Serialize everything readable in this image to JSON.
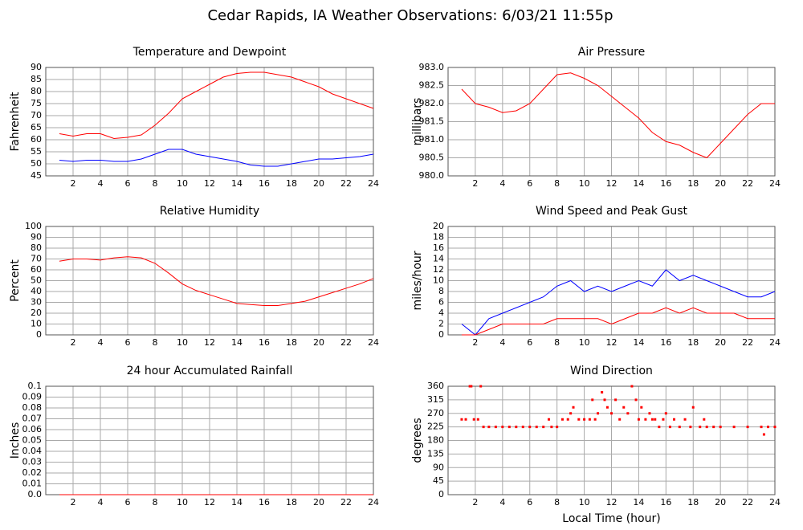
{
  "title": "Cedar Rapids, IA Weather Observations: 6/03/21 11:55p",
  "chart_data": [
    {
      "type": "line",
      "title": "Temperature and Dewpoint",
      "ylabel": "Fahrenheit",
      "x": [
        1,
        2,
        3,
        4,
        5,
        6,
        7,
        8,
        9,
        10,
        11,
        12,
        13,
        14,
        15,
        16,
        17,
        18,
        19,
        20,
        21,
        22,
        23,
        24
      ],
      "series": [
        {
          "color": "#ff0000",
          "values": [
            62.5,
            61.5,
            62.5,
            62.5,
            60.5,
            61,
            62,
            66,
            71,
            77,
            80,
            83,
            86,
            87.5,
            88,
            88,
            87,
            86,
            84,
            82,
            79,
            77,
            75,
            73
          ]
        },
        {
          "color": "#0000ff",
          "values": [
            51.5,
            51,
            51.5,
            51.5,
            51,
            51,
            52,
            54,
            56,
            56,
            54,
            53,
            52,
            51,
            49.5,
            49,
            49,
            50,
            51,
            52,
            52,
            52.5,
            53,
            54
          ]
        }
      ],
      "xlim": [
        0,
        24
      ],
      "xticks": [
        2,
        4,
        6,
        8,
        10,
        12,
        14,
        16,
        18,
        20,
        22,
        24
      ],
      "ylim": [
        45,
        90
      ],
      "yticks": [
        45,
        50,
        55,
        60,
        65,
        70,
        75,
        80,
        85,
        90
      ],
      "grid": true
    },
    {
      "type": "line",
      "title": "Air Pressure",
      "ylabel": "millibars",
      "x": [
        1,
        2,
        3,
        4,
        5,
        6,
        7,
        8,
        9,
        10,
        11,
        12,
        13,
        14,
        15,
        16,
        17,
        18,
        19,
        20,
        21,
        22,
        23,
        24
      ],
      "series": [
        {
          "color": "#ff0000",
          "values": [
            982.4,
            982.0,
            981.9,
            981.75,
            981.8,
            982.0,
            982.4,
            982.8,
            982.85,
            982.7,
            982.5,
            982.2,
            981.9,
            981.6,
            981.2,
            980.95,
            980.85,
            980.65,
            980.5,
            980.9,
            981.3,
            981.7,
            982.0,
            982.0
          ]
        }
      ],
      "xlim": [
        0,
        24
      ],
      "xticks": [
        2,
        4,
        6,
        8,
        10,
        12,
        14,
        16,
        18,
        20,
        22,
        24
      ],
      "ylim": [
        980,
        983
      ],
      "yticks": [
        {
          "value": 980,
          "label": "980.0"
        },
        980.5,
        {
          "value": 981,
          "label": "981.0"
        },
        981.5,
        {
          "value": 982,
          "label": "982.0"
        },
        982.5,
        {
          "value": 983,
          "label": "983.0"
        }
      ],
      "grid": true
    },
    {
      "type": "line",
      "title": "Relative Humidity",
      "ylabel": "Percent",
      "x": [
        1,
        2,
        3,
        4,
        5,
        6,
        7,
        8,
        9,
        10,
        11,
        12,
        13,
        14,
        15,
        16,
        17,
        18,
        19,
        20,
        21,
        22,
        23,
        24
      ],
      "series": [
        {
          "color": "#ff0000",
          "values": [
            68,
            70,
            70,
            69,
            71,
            72,
            71,
            66,
            57,
            47,
            41,
            37,
            33,
            29,
            28,
            27,
            27,
            29,
            31,
            35,
            39,
            43,
            47,
            52
          ]
        }
      ],
      "xlim": [
        0,
        24
      ],
      "xticks": [
        2,
        4,
        6,
        8,
        10,
        12,
        14,
        16,
        18,
        20,
        22,
        24
      ],
      "ylim": [
        0,
        100
      ],
      "yticks": [
        0,
        10,
        20,
        30,
        40,
        50,
        60,
        70,
        80,
        90,
        100
      ],
      "grid": true
    },
    {
      "type": "line",
      "title": "Wind Speed and Peak Gust",
      "ylabel": "miles/hour",
      "x": [
        1,
        2,
        3,
        4,
        5,
        6,
        7,
        8,
        9,
        10,
        11,
        12,
        13,
        14,
        15,
        16,
        17,
        18,
        19,
        20,
        21,
        22,
        23,
        24
      ],
      "series": [
        {
          "color": "#0000ff",
          "values": [
            2,
            0,
            3,
            4,
            5,
            6,
            7,
            9,
            10,
            8,
            9,
            8,
            9,
            10,
            9,
            12,
            10,
            11,
            10,
            9,
            8,
            7,
            7,
            8
          ]
        },
        {
          "color": "#ff0000",
          "values": [
            0,
            0,
            1,
            2,
            2,
            2,
            2,
            3,
            3,
            3,
            3,
            2,
            3,
            4,
            4,
            5,
            4,
            5,
            4,
            4,
            4,
            3,
            3,
            3
          ]
        }
      ],
      "xlim": [
        0,
        24
      ],
      "xticks": [
        2,
        4,
        6,
        8,
        10,
        12,
        14,
        16,
        18,
        20,
        22,
        24
      ],
      "ylim": [
        0,
        20
      ],
      "yticks": [
        0,
        2,
        4,
        6,
        8,
        10,
        12,
        14,
        16,
        18,
        20
      ],
      "grid": true
    },
    {
      "type": "line",
      "title": "24 hour Accumulated Rainfall",
      "ylabel": "Inches",
      "x": [
        1,
        24
      ],
      "series": [
        {
          "color": "#ff0000",
          "values": [
            0,
            0
          ]
        }
      ],
      "xlim": [
        0,
        24
      ],
      "xticks": [
        2,
        4,
        6,
        8,
        10,
        12,
        14,
        16,
        18,
        20,
        22,
        24
      ],
      "ylim": [
        0,
        0.1
      ],
      "yticks": [
        {
          "value": 0,
          "label": "0.0"
        },
        0.01,
        0.02,
        0.03,
        0.04,
        0.05,
        0.06,
        0.07,
        0.08,
        0.09,
        0.1
      ],
      "grid": true
    },
    {
      "type": "scatter",
      "title": "Wind Direction",
      "ylabel": "degrees",
      "xlabel": "Local Time (hour)",
      "x": [
        1.0,
        1.3,
        1.6,
        1.7,
        1.9,
        2.2,
        2.4,
        2.6,
        3,
        3.5,
        4,
        4.5,
        5,
        5.5,
        6,
        6.5,
        7,
        7.4,
        7.6,
        8,
        8.4,
        8.8,
        9.0,
        9.2,
        9.6,
        10,
        10.4,
        10.6,
        10.8,
        11,
        11.3,
        11.5,
        11.7,
        12,
        12.3,
        12.6,
        12.9,
        13.2,
        13.5,
        13.8,
        14,
        14.2,
        14.5,
        14.8,
        15,
        15.2,
        15.5,
        15.8,
        16,
        16.3,
        16.6,
        17,
        17.4,
        17.8,
        18,
        18.5,
        18.8,
        19,
        19.5,
        20,
        21,
        22,
        23,
        23.2,
        23.5,
        24
      ],
      "series": [
        {
          "color": "#ff0000",
          "values": [
            250,
            250,
            360,
            360,
            250,
            250,
            360,
            225,
            225,
            225,
            225,
            225,
            225,
            225,
            225,
            225,
            225,
            250,
            225,
            225,
            250,
            250,
            270,
            290,
            250,
            250,
            250,
            315,
            250,
            270,
            340,
            315,
            290,
            270,
            315,
            250,
            290,
            270,
            360,
            315,
            250,
            290,
            250,
            270,
            250,
            250,
            225,
            250,
            270,
            225,
            250,
            225,
            250,
            225,
            290,
            225,
            250,
            225,
            225,
            225,
            225,
            225,
            225,
            200,
            225,
            225
          ]
        }
      ],
      "xlim": [
        0,
        24
      ],
      "xticks": [
        2,
        4,
        6,
        8,
        10,
        12,
        14,
        16,
        18,
        20,
        22,
        24
      ],
      "ylim": [
        0,
        360
      ],
      "yticks": [
        0,
        45,
        90,
        135,
        180,
        225,
        270,
        315,
        360
      ],
      "grid": true
    }
  ]
}
